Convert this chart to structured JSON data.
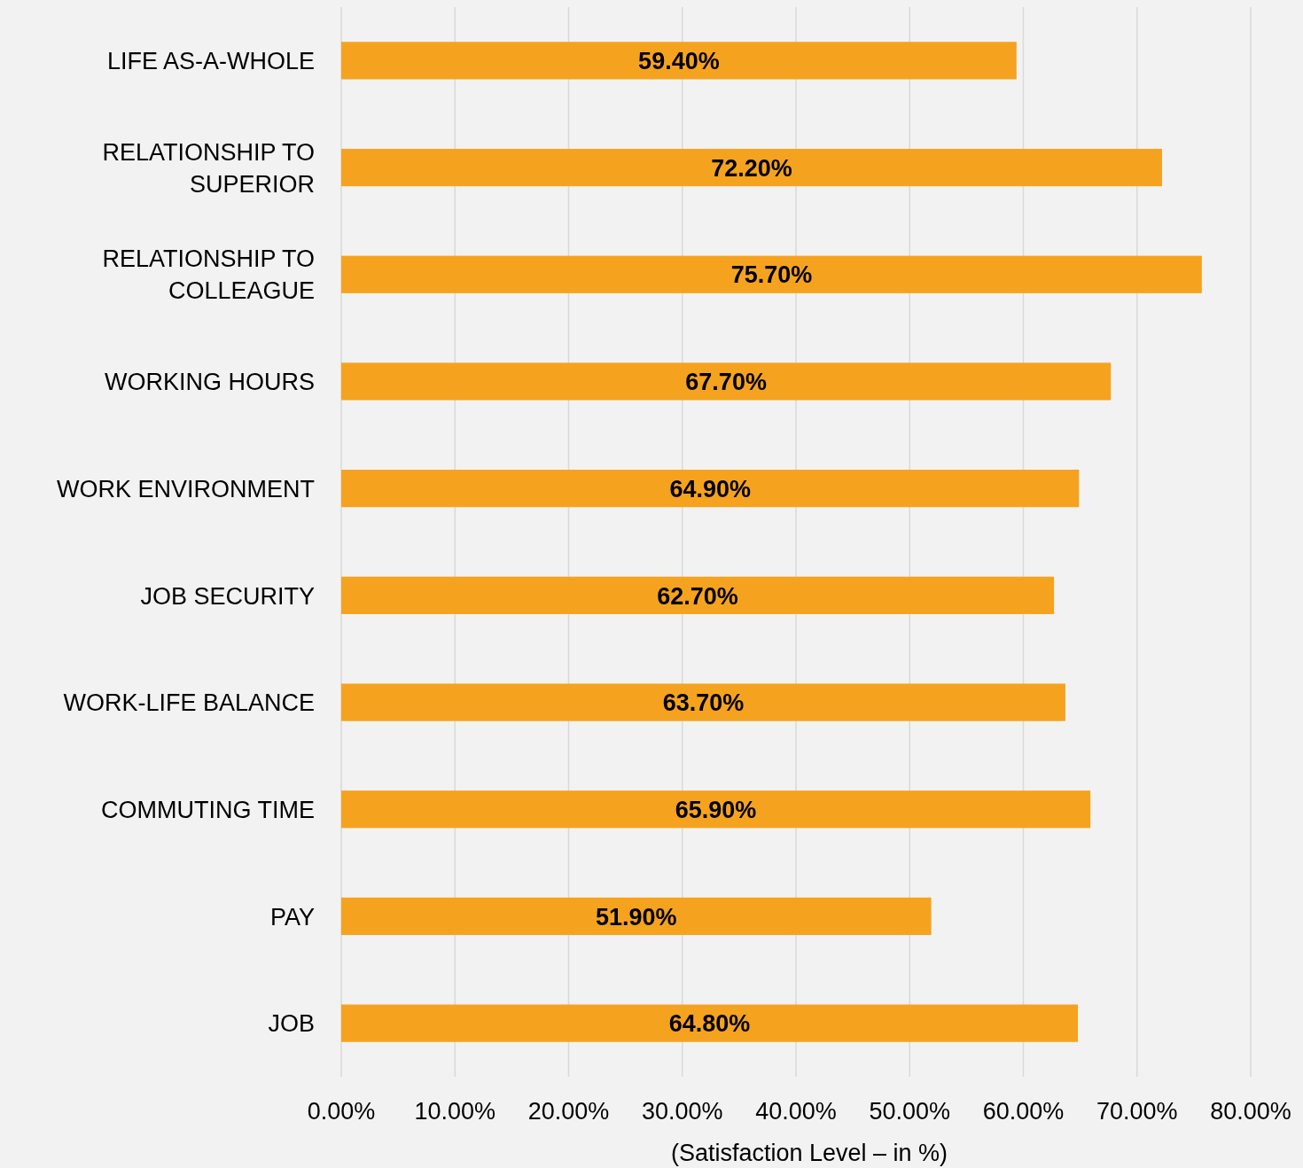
{
  "chart_data": {
    "type": "bar",
    "orientation": "horizontal",
    "xlabel": "(Satisfaction Level – in %)",
    "categories": [
      "LIFE AS-A-WHOLE",
      "RELATIONSHIP TO SUPERIOR",
      "RELATIONSHIP TO COLLEAGUE",
      "WORKING HOURS",
      "WORK ENVIRONMENT",
      "JOB SECURITY",
      "WORK-LIFE BALANCE",
      "COMMUTING TIME",
      "PAY",
      "JOB"
    ],
    "values": [
      59.4,
      72.2,
      75.7,
      67.7,
      64.9,
      62.7,
      63.7,
      65.9,
      51.9,
      64.8
    ],
    "value_labels": [
      "59.40%",
      "72.20%",
      "75.70%",
      "67.70%",
      "64.90%",
      "62.70%",
      "63.70%",
      "65.90%",
      "51.90%",
      "64.80%"
    ],
    "color": "#f5a31f",
    "xlim": [
      0,
      80
    ],
    "xticks": [
      {
        "value": 0,
        "label": "0.00%"
      },
      {
        "value": 10,
        "label": "10.00%"
      },
      {
        "value": 20,
        "label": "20.00%"
      },
      {
        "value": 30,
        "label": "30.00%"
      },
      {
        "value": 40,
        "label": "40.00%"
      },
      {
        "value": 50,
        "label": "50.00%"
      },
      {
        "value": 60,
        "label": "60.00%"
      },
      {
        "value": 70,
        "label": "70.00%"
      },
      {
        "value": 80,
        "label": "80.00%"
      }
    ],
    "grid": "x"
  }
}
